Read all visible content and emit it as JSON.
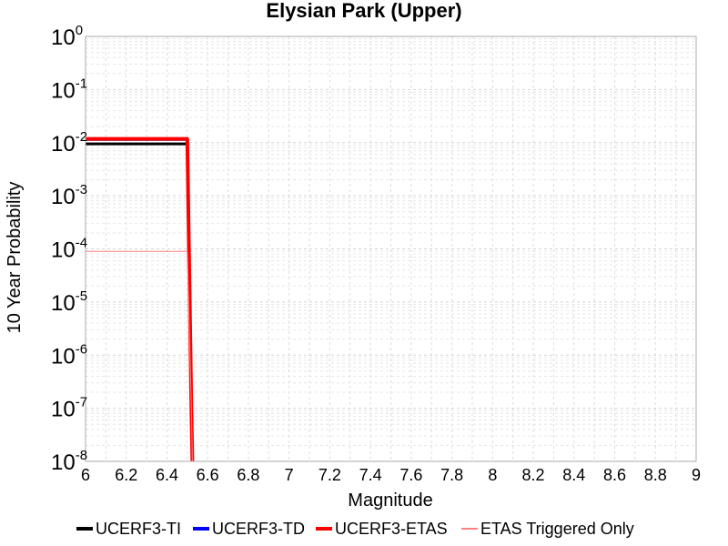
{
  "chart_data": {
    "type": "line",
    "title": "Elysian Park (Upper)",
    "xlabel": "Magnitude",
    "ylabel": "10 Year Probability",
    "xlim": [
      6,
      9
    ],
    "ylim": [
      1e-08,
      1
    ],
    "y_scale": "log",
    "x_ticks": [
      "6",
      "6.2",
      "6.4",
      "6.6",
      "6.8",
      "7",
      "7.2",
      "7.4",
      "7.6",
      "7.8",
      "8",
      "8.2",
      "8.4",
      "8.6",
      "8.8",
      "9"
    ],
    "y_ticks": [
      {
        "base": "10",
        "exp": "0"
      },
      {
        "base": "10",
        "exp": "-1"
      },
      {
        "base": "10",
        "exp": "-2"
      },
      {
        "base": "10",
        "exp": "-3"
      },
      {
        "base": "10",
        "exp": "-4"
      },
      {
        "base": "10",
        "exp": "-5"
      },
      {
        "base": "10",
        "exp": "-6"
      },
      {
        "base": "10",
        "exp": "-7"
      },
      {
        "base": "10",
        "exp": "-8"
      }
    ],
    "grid": true,
    "legend_position": "bottom",
    "series": [
      {
        "name": "UCERF3-TI",
        "color": "#000000",
        "x": [
          6.0,
          6.5,
          6.52,
          6.53
        ],
        "y": [
          0.0095,
          0.0095,
          1e-07,
          1e-09
        ]
      },
      {
        "name": "UCERF3-TD",
        "color": "#0000ff",
        "x": [
          6.0,
          6.5,
          6.52,
          6.53
        ],
        "y": [
          0.0115,
          0.0115,
          1e-07,
          1e-09
        ]
      },
      {
        "name": "UCERF3-ETAS",
        "color": "#ff0000",
        "x": [
          6.0,
          6.5,
          6.52,
          6.53
        ],
        "y": [
          0.0118,
          0.0118,
          1e-07,
          1e-09
        ]
      },
      {
        "name": "ETAS Triggered Only",
        "color": "#ff8080",
        "x": [
          6.0,
          6.5,
          6.52,
          6.53
        ],
        "y": [
          9e-05,
          9e-05,
          1e-07,
          1e-09
        ]
      }
    ]
  }
}
